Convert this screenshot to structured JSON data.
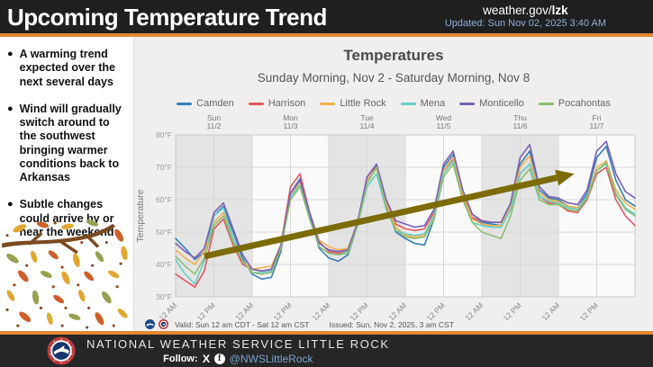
{
  "header": {
    "title": "Upcoming Temperature Trend",
    "site_prefix": "weather.gov/",
    "site_bold": "lzk",
    "updated": "Updated: Sun Nov 02, 2025 3:40 AM"
  },
  "sidebar": {
    "bullets": [
      "A warming trend expected over the next several days",
      "Wind will gradually switch around to the southwest bringing warmer conditions back to Arkansas",
      "Subtle changes could arrive by or near the weekend"
    ]
  },
  "chart_data": {
    "type": "line",
    "title": "Temperatures",
    "subtitle": "Sunday Morning, Nov 2 - Saturday Morning, Nov 8",
    "ylabel": "Temperature",
    "ylim": [
      30,
      80
    ],
    "y_tick_labels": [
      "30°F",
      "40°F",
      "50°F",
      "60°F",
      "70°F",
      "80°F"
    ],
    "x_span_hours": 144,
    "sample_step_hours": 3,
    "day_labels": [
      {
        "day": "Sun",
        "date": "11/2"
      },
      {
        "day": "Mon",
        "date": "11/3"
      },
      {
        "day": "Tue",
        "date": "11/4"
      },
      {
        "day": "Wed",
        "date": "11/5"
      },
      {
        "day": "Thu",
        "date": "11/6"
      },
      {
        "day": "Fri",
        "date": "11/7"
      }
    ],
    "time_tick_labels": [
      "12 AM",
      "12 PM"
    ],
    "band_colors": {
      "shaded": "#e4e4e4",
      "light": "#fafafa"
    },
    "grid_color": "#d7d7d7",
    "series": [
      {
        "name": "Camden",
        "color": "#377eb8",
        "values": [
          48,
          45,
          41.5,
          44,
          55,
          58,
          50,
          42,
          37,
          35.5,
          36,
          44,
          62,
          66.5,
          55,
          45,
          42,
          41,
          43,
          52,
          67,
          70.5,
          58,
          50,
          48,
          46.5,
          46,
          54,
          70,
          74,
          62,
          54,
          53,
          52.5,
          52,
          58,
          71,
          75,
          63,
          60.5,
          60,
          58,
          57.5,
          62,
          73,
          76.5,
          66,
          60,
          58
        ]
      },
      {
        "name": "Harrison",
        "color": "#e2575e",
        "values": [
          37,
          35,
          33,
          38,
          51,
          54,
          46,
          40,
          38.5,
          38,
          38.5,
          46,
          64,
          68,
          56,
          47,
          44,
          43.5,
          44,
          52,
          67,
          70.5,
          59,
          52.5,
          51,
          50.5,
          51,
          56,
          69,
          72.5,
          61,
          54.5,
          53.5,
          53,
          53,
          57,
          68,
          71,
          61,
          59,
          58.5,
          56.5,
          56,
          60,
          68,
          70,
          60,
          55,
          52
        ]
      },
      {
        "name": "Little Rock",
        "color": "#f2b04b",
        "values": [
          44.5,
          42,
          40,
          44,
          53,
          56,
          48,
          41,
          38.5,
          39,
          39.5,
          46,
          61,
          65.5,
          56,
          47.5,
          45.5,
          44.5,
          45,
          53,
          66,
          69.5,
          59,
          51.5,
          49,
          48.5,
          49,
          55,
          69,
          73,
          62,
          54,
          52.5,
          52,
          52,
          58,
          70,
          73.5,
          62,
          60,
          59.5,
          58,
          57.5,
          61,
          70,
          72,
          63,
          59,
          57
        ]
      },
      {
        "name": "Mena",
        "color": "#63cfc5",
        "values": [
          41.5,
          37,
          34,
          41,
          55,
          57.5,
          48,
          41,
          37.5,
          37.5,
          38,
          45,
          61,
          64.5,
          54,
          45.5,
          43.5,
          43,
          44,
          52,
          64,
          68,
          57,
          50.5,
          49.5,
          49,
          49.5,
          55,
          68,
          72,
          60,
          53,
          52,
          51.5,
          51.5,
          57,
          68,
          71,
          61,
          59.5,
          59,
          57.5,
          57,
          61,
          69,
          71,
          62,
          57.5,
          55.5
        ]
      },
      {
        "name": "Monticello",
        "color": "#7a5fb5",
        "values": [
          46.5,
          44,
          42,
          45,
          56,
          59,
          51,
          43,
          38.5,
          38,
          38.5,
          46,
          62,
          66,
          56,
          46.5,
          44.5,
          44,
          44.5,
          53,
          67,
          71,
          60,
          53.5,
          52.5,
          51.5,
          52,
          57,
          71,
          75,
          63,
          55.5,
          53.5,
          53,
          53,
          59,
          73,
          77,
          64,
          61,
          60.5,
          59,
          58.5,
          63,
          75,
          78,
          68,
          62.5,
          60.5
        ]
      },
      {
        "name": "Pocahontas",
        "color": "#8cbd72",
        "values": [
          42.5,
          39.5,
          37,
          42,
          52,
          55,
          47,
          41,
          37.5,
          37,
          37.5,
          45,
          60,
          64,
          54,
          45.5,
          43.5,
          43,
          43.5,
          52,
          65,
          70,
          57.5,
          50.5,
          48.5,
          48,
          48.5,
          54,
          67,
          71,
          60,
          53,
          50,
          49,
          48,
          55,
          66,
          69.5,
          60,
          58.5,
          58.5,
          57,
          56.5,
          60.5,
          69,
          71.5,
          61.5,
          57,
          55
        ]
      }
    ],
    "trend_arrow": {
      "from_hour": 9,
      "from_temp": 42.5,
      "to_hour": 125,
      "to_temp": 68,
      "color": "#7d6b07"
    },
    "valid_text": "Valid: Sun 12 am CDT - Sat 12 am CST",
    "issued_text": "Issued: Sun, Nov 2, 2025, 3 am CST"
  },
  "footer": {
    "org": "NATIONAL WEATHER SERVICE LITTLE ROCK",
    "follow_label": "Follow:",
    "x_icon": "X",
    "fb_icon": "f",
    "handle": "@NWSLittleRock"
  },
  "colors": {
    "accent_orange": "#e2872f",
    "header_bg": "#1f1f1f",
    "footer_bg": "#262626",
    "panel_bg": "#f0efee"
  }
}
